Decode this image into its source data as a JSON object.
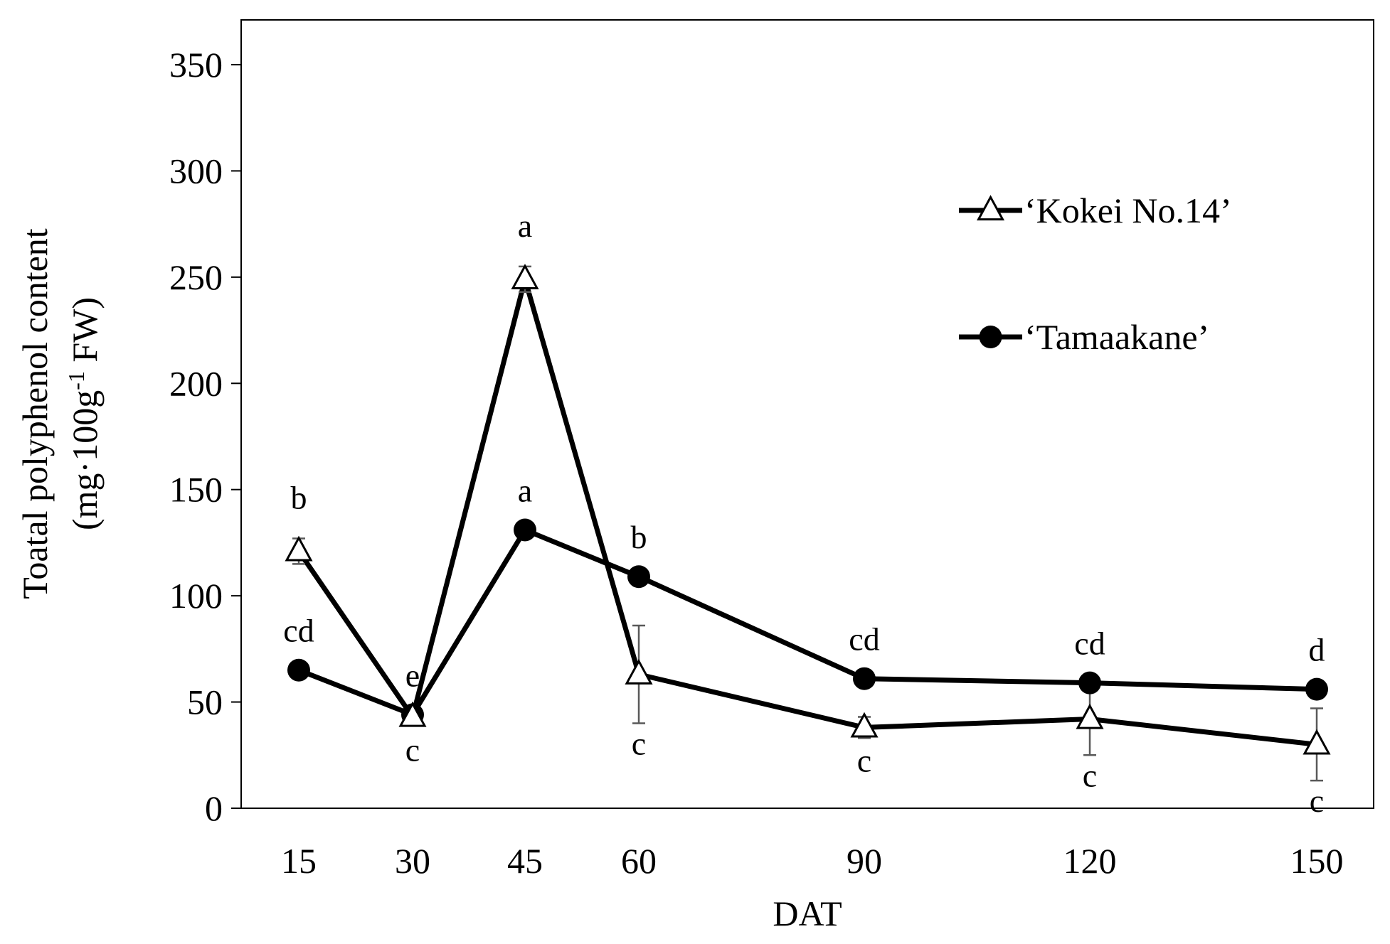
{
  "chart_data": {
    "type": "line",
    "title": "",
    "xlabel": "DAT",
    "ylabel_line1": "Toatal polyphenol content",
    "ylabel_line2_prefix": "(mg·100g",
    "ylabel_line2_sup": "-1",
    "ylabel_line2_suffix": " FW)",
    "x": [
      15,
      30,
      45,
      60,
      90,
      120,
      150
    ],
    "x_tick_labels": [
      "15",
      "30",
      "45",
      "60",
      "90",
      "120",
      "150"
    ],
    "y_ticks": [
      0,
      50,
      100,
      150,
      200,
      250,
      300,
      350
    ],
    "y_tick_labels": [
      "0",
      "50",
      "100",
      "150",
      "200",
      "250",
      "300",
      "350"
    ],
    "ylim": [
      0,
      370
    ],
    "grid": false,
    "legend_position": "top-right",
    "series": [
      {
        "name": "‘Kokei No.14’",
        "marker": "triangle-open",
        "values": [
          121,
          43,
          249,
          63,
          38,
          42,
          30
        ],
        "errors": [
          6,
          2,
          6,
          23,
          5,
          17,
          17
        ],
        "letters": [
          "b",
          "c",
          "a",
          "c",
          "c",
          "c",
          "c"
        ],
        "letter_side": [
          "above",
          "below",
          "above",
          "below",
          "below",
          "below",
          "below"
        ]
      },
      {
        "name": "‘Tamaakane’",
        "marker": "circle-filled",
        "values": [
          65,
          44,
          131,
          109,
          61,
          59,
          56
        ],
        "errors": [
          0,
          0,
          0,
          0,
          0,
          0,
          0
        ],
        "letters": [
          "cd",
          "e",
          "a",
          "b",
          "cd",
          "cd",
          "d"
        ],
        "letter_side": [
          "above",
          "above",
          "above",
          "above",
          "above",
          "above",
          "above"
        ]
      }
    ]
  }
}
